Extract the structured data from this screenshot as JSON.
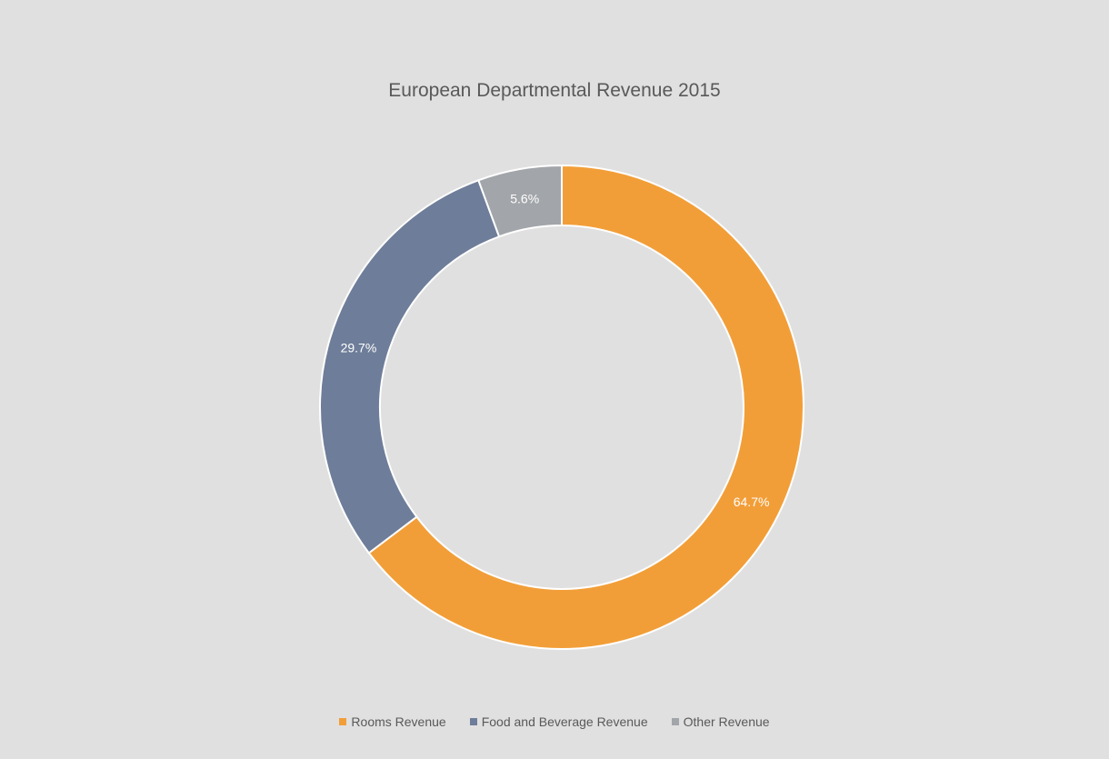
{
  "chart_data": {
    "type": "pie",
    "variant": "doughnut",
    "title": "European Departmental Revenue 2015",
    "categories": [
      "Rooms Revenue",
      "Food and Beverage Revenue",
      "Other Revenue"
    ],
    "values": [
      64.7,
      29.7,
      5.6
    ],
    "data_labels": [
      "64.7%",
      "29.7%",
      "5.6%"
    ],
    "colors": [
      "#f29e38",
      "#6e7d99",
      "#a2a5a9"
    ],
    "legend_placement": "bottom"
  }
}
